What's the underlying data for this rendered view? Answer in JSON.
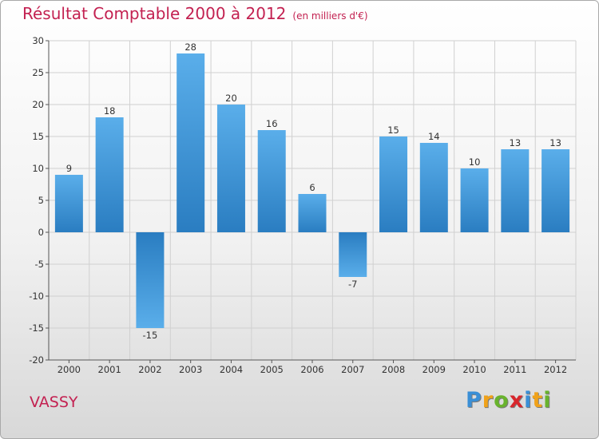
{
  "header": {
    "title": "Résultat Comptable 2000 à 2012",
    "subtitle": "(en milliers d'€)"
  },
  "footer": {
    "place": "VASSY",
    "logo_letters": [
      "P",
      "r",
      "o",
      "x",
      "i",
      "t",
      "i"
    ],
    "logo_colors": [
      "#3a8fd6",
      "#f0a21a",
      "#69b32d",
      "#d8262c",
      "#3a8fd6",
      "#f0a21a",
      "#69b32d"
    ]
  },
  "colors": {
    "bar_light": "#5aaeea",
    "bar_dark": "#2a7dc1",
    "title": "#c32151"
  },
  "chart_data": {
    "type": "bar",
    "categories": [
      "2000",
      "2001",
      "2002",
      "2003",
      "2004",
      "2005",
      "2006",
      "2007",
      "2008",
      "2009",
      "2010",
      "2011",
      "2012"
    ],
    "values": [
      9,
      18,
      -15,
      28,
      20,
      16,
      6,
      -7,
      15,
      14,
      10,
      13,
      13
    ],
    "ylim": [
      -20,
      30
    ],
    "yticks": [
      30,
      25,
      20,
      15,
      10,
      5,
      0,
      -5,
      -10,
      -15,
      -20
    ],
    "grid": true
  }
}
